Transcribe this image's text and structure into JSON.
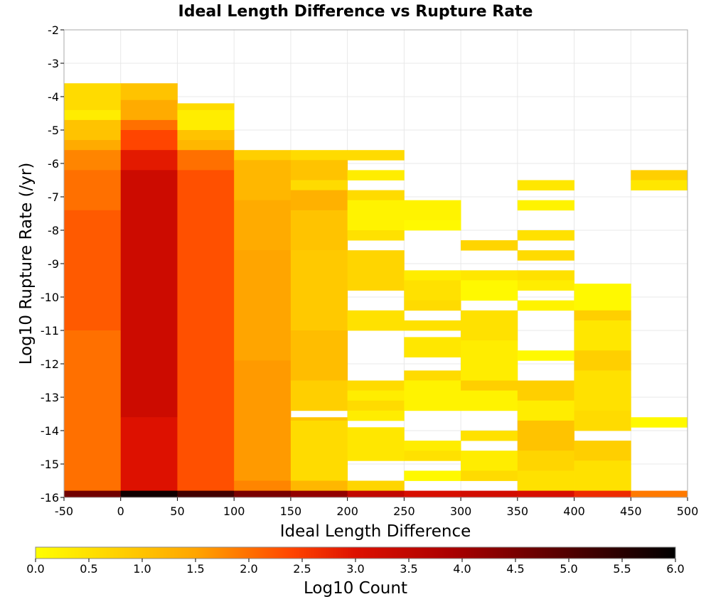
{
  "chart_data": {
    "type": "heatmap",
    "title": "Ideal Length Difference vs Rupture Rate",
    "xlabel": "Ideal Length Difference",
    "ylabel": "Log10 Rupture Rate (/yr)",
    "xlim": [
      -50,
      500
    ],
    "ylim": [
      -16,
      -2
    ],
    "x_ticks": [
      "-50",
      "0",
      "50",
      "100",
      "150",
      "200",
      "250",
      "300",
      "350",
      "400",
      "450",
      "500"
    ],
    "y_ticks": [
      "-2",
      "-3",
      "-4",
      "-5",
      "-6",
      "-7",
      "-8",
      "-9",
      "-10",
      "-11",
      "-12",
      "-13",
      "-14",
      "-15",
      "-16"
    ],
    "grid": true,
    "colorbar": {
      "label": "Log10 Count",
      "min": 0,
      "max": 6,
      "ticks": [
        "0.0",
        "0.5",
        "1.0",
        "1.5",
        "2.0",
        "2.5",
        "3.0",
        "3.5",
        "4.0",
        "4.5",
        "5.0",
        "5.5",
        "6.0"
      ],
      "colors": [
        "#ffff00",
        "#ffa500",
        "#ff4500",
        "#dd1100",
        "#aa0000",
        "#000000"
      ]
    },
    "bins": {
      "x_width": 50,
      "y_height": 0.3,
      "columns": [
        {
          "x0": -50,
          "runs": [
            [
              -4.4,
              -3.6,
              0.6
            ],
            [
              -4.7,
              -4.4,
              0.3
            ],
            [
              -5.3,
              -4.7,
              1.0
            ],
            [
              -5.6,
              -5.3,
              1.4
            ],
            [
              -6.2,
              -5.6,
              1.8
            ],
            [
              -7.4,
              -6.2,
              2.0
            ],
            [
              -11.0,
              -7.4,
              2.2
            ],
            [
              -15.8,
              -11.0,
              2.0
            ],
            [
              -16.0,
              -15.8,
              4.6
            ]
          ]
        },
        {
          "x0": 0,
          "runs": [
            [
              -4.1,
              -3.6,
              1.0
            ],
            [
              -4.7,
              -4.1,
              1.4
            ],
            [
              -5.0,
              -4.7,
              2.0
            ],
            [
              -5.6,
              -5.0,
              2.4
            ],
            [
              -6.2,
              -5.6,
              2.9
            ],
            [
              -13.6,
              -6.2,
              3.3
            ],
            [
              -15.8,
              -13.6,
              3.0
            ],
            [
              -16.0,
              -15.8,
              5.8
            ]
          ]
        },
        {
          "x0": 50,
          "runs": [
            [
              -4.4,
              -4.2,
              0.6
            ],
            [
              -5.0,
              -4.4,
              0.3
            ],
            [
              -5.3,
              -5.0,
              1.0
            ],
            [
              -5.6,
              -5.3,
              1.2
            ],
            [
              -6.2,
              -5.6,
              2.0
            ],
            [
              -15.8,
              -6.2,
              2.3
            ],
            [
              -16.0,
              -15.8,
              5.2
            ]
          ]
        },
        {
          "x0": 100,
          "runs": [
            [
              -5.9,
              -5.6,
              0.8
            ],
            [
              -7.1,
              -5.9,
              1.2
            ],
            [
              -8.6,
              -7.1,
              1.4
            ],
            [
              -11.9,
              -8.6,
              1.5
            ],
            [
              -15.5,
              -11.9,
              1.6
            ],
            [
              -15.8,
              -15.5,
              1.8
            ],
            [
              -16.0,
              -15.8,
              4.5
            ]
          ]
        },
        {
          "x0": 150,
          "runs": [
            [
              -5.9,
              -5.6,
              0.6
            ],
            [
              -6.5,
              -5.9,
              1.0
            ],
            [
              -6.8,
              -6.5,
              0.6
            ],
            [
              -7.4,
              -6.8,
              1.3
            ],
            [
              -8.6,
              -7.4,
              1.0
            ],
            [
              -11.0,
              -8.6,
              0.9
            ],
            [
              -12.5,
              -11.0,
              1.1
            ],
            [
              -13.4,
              -12.5,
              0.8
            ],
            [
              -13.7,
              -13.6,
              1.0
            ],
            [
              -15.5,
              -13.7,
              0.6
            ],
            [
              -15.8,
              -15.5,
              1.2
            ],
            [
              -16.0,
              -15.8,
              4.2
            ]
          ]
        },
        {
          "x0": 200,
          "runs": [
            [
              -5.9,
              -5.6,
              0.6
            ],
            [
              -6.5,
              -6.2,
              0.3
            ],
            [
              -7.1,
              -6.8,
              0.6
            ],
            [
              -8.0,
              -7.1,
              0.2
            ],
            [
              -8.3,
              -8.0,
              0.5
            ],
            [
              -9.8,
              -8.6,
              0.7
            ],
            [
              -11.0,
              -10.4,
              0.5
            ],
            [
              -12.8,
              -12.5,
              0.6
            ],
            [
              -13.1,
              -12.8,
              0.3
            ],
            [
              -13.4,
              -13.1,
              0.6
            ],
            [
              -13.7,
              -13.4,
              0.3
            ],
            [
              -14.9,
              -13.9,
              0.4
            ],
            [
              -15.8,
              -15.5,
              0.7
            ],
            [
              -16.0,
              -15.8,
              3.5
            ]
          ]
        },
        {
          "x0": 250,
          "runs": [
            [
              -7.7,
              -7.1,
              0.2
            ],
            [
              -8.0,
              -7.7,
              0.1
            ],
            [
              -9.5,
              -9.2,
              0.3
            ],
            [
              -10.1,
              -9.5,
              0.5
            ],
            [
              -10.4,
              -10.1,
              0.6
            ],
            [
              -11.0,
              -10.7,
              0.5
            ],
            [
              -11.8,
              -11.2,
              0.4
            ],
            [
              -12.5,
              -12.2,
              0.6
            ],
            [
              -13.4,
              -12.5,
              0.2
            ],
            [
              -14.6,
              -14.3,
              0.3
            ],
            [
              -14.9,
              -14.6,
              0.5
            ],
            [
              -15.5,
              -15.2,
              0.1
            ],
            [
              -16.0,
              -15.8,
              3.1
            ]
          ]
        },
        {
          "x0": 300,
          "runs": [
            [
              -8.6,
              -8.3,
              0.7
            ],
            [
              -9.5,
              -9.2,
              0.4
            ],
            [
              -10.1,
              -9.5,
              0.1
            ],
            [
              -11.3,
              -10.4,
              0.5
            ],
            [
              -12.5,
              -11.3,
              0.3
            ],
            [
              -12.8,
              -12.5,
              0.8
            ],
            [
              -13.4,
              -12.8,
              0.2
            ],
            [
              -14.3,
              -14.0,
              0.5
            ],
            [
              -15.2,
              -14.6,
              0.3
            ],
            [
              -15.5,
              -15.2,
              0.6
            ],
            [
              -16.0,
              -15.8,
              3.2
            ]
          ]
        },
        {
          "x0": 350,
          "runs": [
            [
              -6.8,
              -6.5,
              0.4
            ],
            [
              -7.4,
              -7.1,
              0.2
            ],
            [
              -8.3,
              -8.0,
              0.5
            ],
            [
              -8.9,
              -8.6,
              0.6
            ],
            [
              -9.5,
              -9.2,
              0.5
            ],
            [
              -9.8,
              -9.5,
              0.3
            ],
            [
              -10.4,
              -10.1,
              0.2
            ],
            [
              -11.9,
              -11.6,
              0.1
            ],
            [
              -13.1,
              -12.5,
              0.8
            ],
            [
              -13.7,
              -13.1,
              0.3
            ],
            [
              -14.6,
              -13.7,
              1.0
            ],
            [
              -15.2,
              -14.6,
              0.7
            ],
            [
              -15.8,
              -15.2,
              0.5
            ],
            [
              -16.0,
              -15.8,
              3.1
            ]
          ]
        },
        {
          "x0": 400,
          "runs": [
            [
              -10.4,
              -9.6,
              0.1
            ],
            [
              -10.7,
              -10.4,
              0.8
            ],
            [
              -11.6,
              -10.7,
              0.4
            ],
            [
              -12.2,
              -11.6,
              0.8
            ],
            [
              -13.4,
              -12.2,
              0.5
            ],
            [
              -14.0,
              -13.4,
              0.6
            ],
            [
              -14.9,
              -14.3,
              0.8
            ],
            [
              -15.8,
              -14.9,
              0.5
            ],
            [
              -16.0,
              -15.8,
              2.7
            ]
          ]
        },
        {
          "x0": 450,
          "runs": [
            [
              -6.5,
              -6.2,
              0.8
            ],
            [
              -6.8,
              -6.5,
              0.4
            ],
            [
              -13.9,
              -13.6,
              0.1
            ],
            [
              -16.0,
              -15.8,
              1.9
            ]
          ]
        }
      ]
    }
  }
}
